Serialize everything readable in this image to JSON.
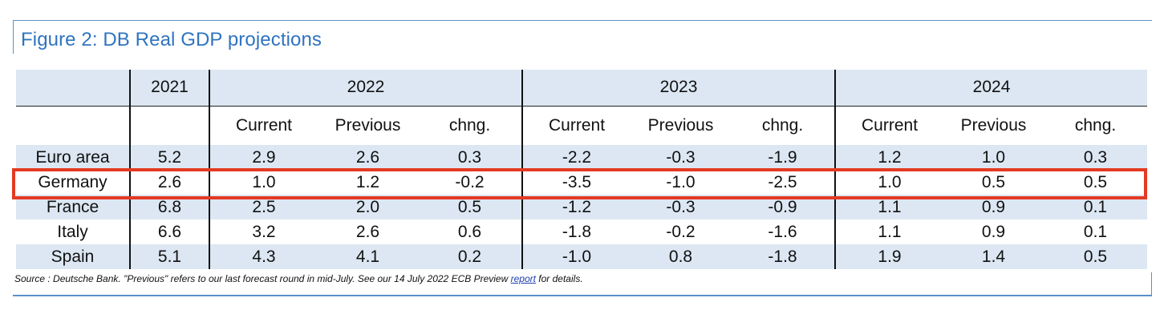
{
  "figure": {
    "title": "Figure 2: DB Real GDP projections",
    "source_prefix": "Source : Deutsche Bank. \"Previous\" refers to our last forecast round in mid-July. See our 14 July 2022 ECB Preview ",
    "source_link": "report",
    "source_suffix": " for details."
  },
  "table": {
    "years": [
      "2021",
      "2022",
      "2023",
      "2024"
    ],
    "subheaders": [
      "Current",
      "Previous",
      "chng.",
      "Current",
      "Previous",
      "chng.",
      "Current",
      "Previous",
      "chng."
    ],
    "rows": [
      {
        "country": "Euro area",
        "values": [
          "5.2",
          "2.9",
          "2.6",
          "0.3",
          "-2.2",
          "-0.3",
          "-1.9",
          "1.2",
          "1.0",
          "0.3"
        ]
      },
      {
        "country": "Germany",
        "values": [
          "2.6",
          "1.0",
          "1.2",
          "-0.2",
          "-3.5",
          "-1.0",
          "-2.5",
          "1.0",
          "0.5",
          "0.5"
        ]
      },
      {
        "country": "France",
        "values": [
          "6.8",
          "2.5",
          "2.0",
          "0.5",
          "-1.2",
          "-0.3",
          "-0.9",
          "1.1",
          "0.9",
          "0.1"
        ]
      },
      {
        "country": "Italy",
        "values": [
          "6.6",
          "3.2",
          "2.6",
          "0.6",
          "-1.8",
          "-0.2",
          "-1.6",
          "1.1",
          "0.9",
          "0.1"
        ]
      },
      {
        "country": "Spain",
        "values": [
          "5.1",
          "4.3",
          "4.1",
          "0.2",
          "-1.0",
          "0.8",
          "-1.8",
          "1.9",
          "1.4",
          "0.5"
        ]
      }
    ],
    "highlighted_row": "Germany"
  },
  "colors": {
    "title": "#2f74c0",
    "shading": "#dce7f3",
    "highlight_border": "#e43a22",
    "frame": "#5b8fc9"
  }
}
